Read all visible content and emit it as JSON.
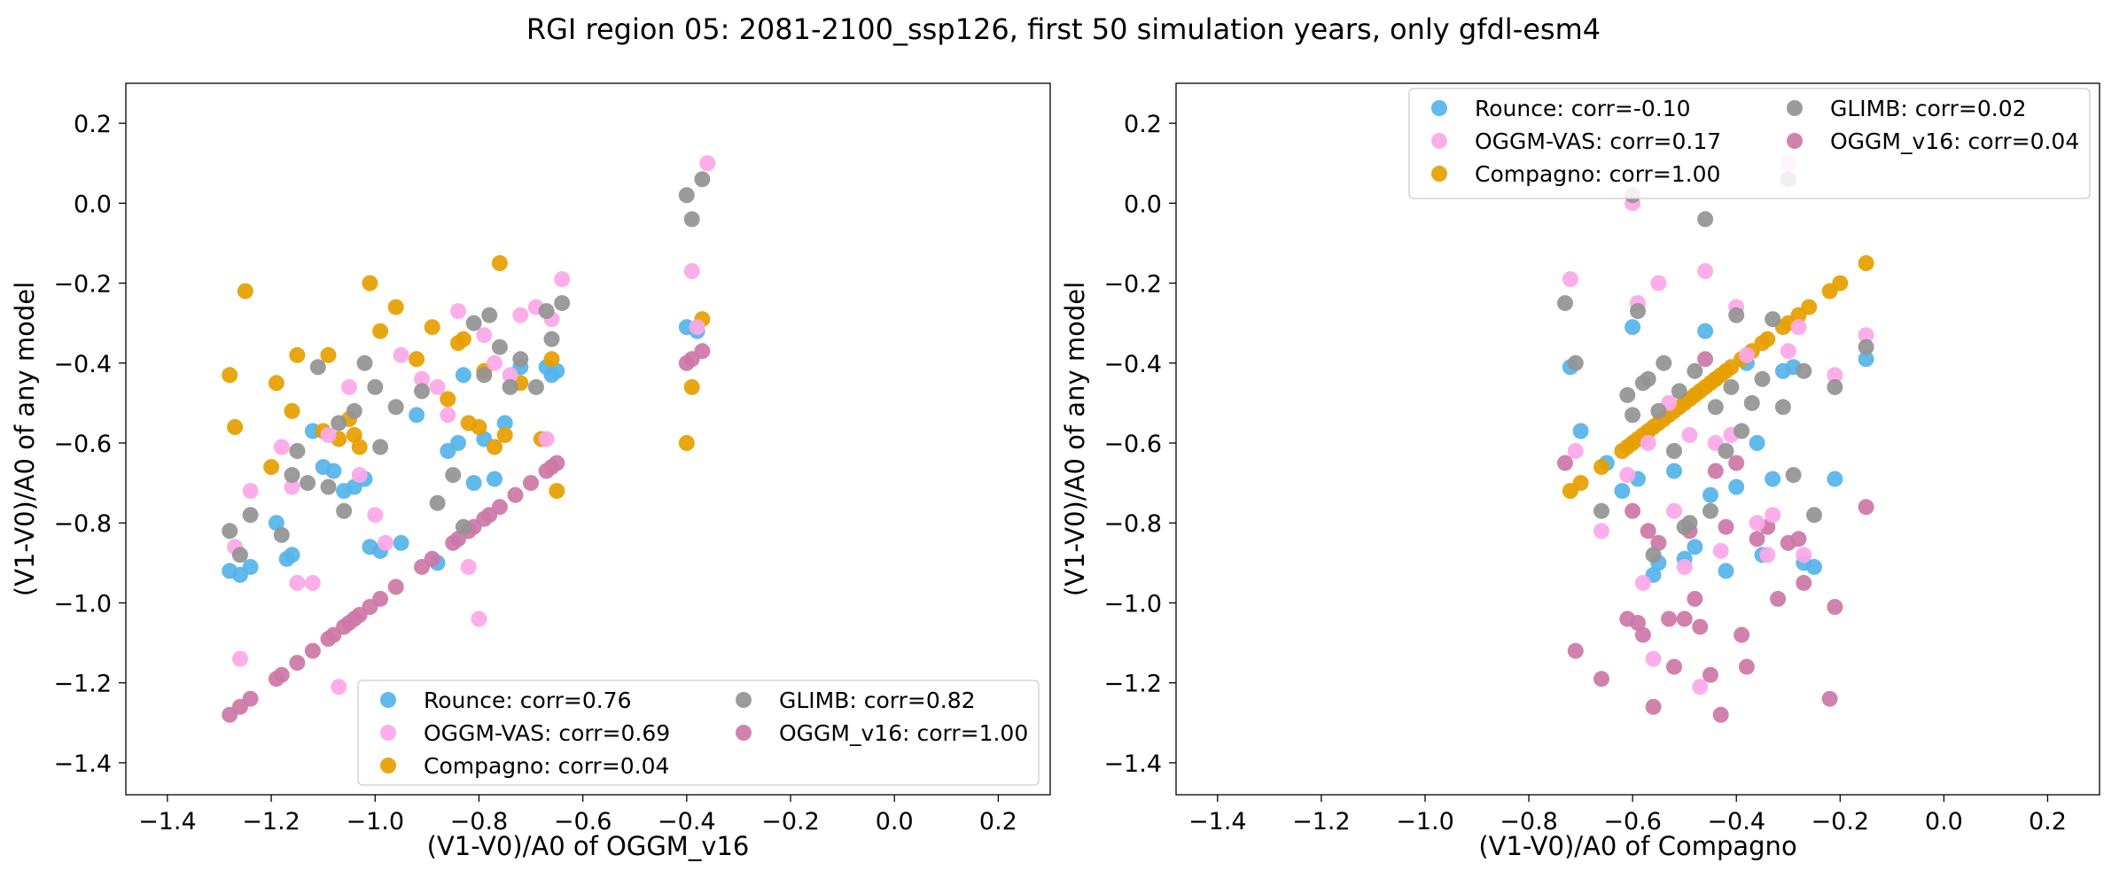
{
  "figure_title": "RGI region 05: 2081-2100_ssp126, first 50 simulation years, only gfdl-esm4",
  "colors": {
    "Rounce": "#56b4e9",
    "Compagno": "#e69f00",
    "OGGM_v16": "#cc79a7",
    "OGGM-VAS": "#fca8e8",
    "GLIMB": "#939393"
  },
  "chart_data": [
    {
      "type": "scatter",
      "title": "",
      "xlabel": "(V1-V0)/A0 of OGGM_v16",
      "ylabel": "(V1-V0)/A0 of any model",
      "xlim": [
        -1.48,
        0.3
      ],
      "ylim": [
        -1.48,
        0.3
      ],
      "xticks": [
        "−1.4",
        "−1.2",
        "−1.0",
        "−0.8",
        "−0.6",
        "−0.4",
        "−0.2",
        "0.0",
        "0.2"
      ],
      "yticks": [
        "0.2",
        "0.0",
        "−0.2",
        "−0.4",
        "−0.6",
        "−0.8",
        "−1.0",
        "−1.2",
        "−1.4"
      ],
      "grid": false,
      "legend_position": "lower-right",
      "legend_columns": 2,
      "series": [
        {
          "name": "Rounce: corr=0.76",
          "model": "Rounce",
          "x": [
            -1.28,
            -1.26,
            -1.24,
            -1.19,
            -1.17,
            -1.16,
            -1.12,
            -1.1,
            -1.08,
            -1.06,
            -1.04,
            -1.02,
            -1.01,
            -0.99,
            -0.95,
            -0.92,
            -0.88,
            -0.86,
            -0.84,
            -0.83,
            -0.81,
            -0.79,
            -0.77,
            -0.75,
            -0.72,
            -0.67,
            -0.66,
            -0.65,
            -0.4,
            -0.38
          ],
          "y": [
            -0.92,
            -0.93,
            -0.91,
            -0.8,
            -0.89,
            -0.88,
            -0.57,
            -0.66,
            -0.67,
            -0.72,
            -0.71,
            -0.69,
            -0.86,
            -0.87,
            -0.85,
            -0.53,
            -0.9,
            -0.62,
            -0.6,
            -0.43,
            -0.7,
            -0.59,
            -0.69,
            -0.55,
            -0.41,
            -0.41,
            -0.43,
            -0.42,
            -0.31,
            -0.32
          ]
        },
        {
          "name": "Compagno: corr=0.04",
          "model": "Compagno",
          "x": [
            -1.28,
            -1.27,
            -1.25,
            -1.2,
            -1.19,
            -1.16,
            -1.15,
            -1.1,
            -1.09,
            -1.07,
            -1.05,
            -1.04,
            -1.03,
            -1.01,
            -0.99,
            -0.96,
            -0.92,
            -0.89,
            -0.86,
            -0.84,
            -0.83,
            -0.82,
            -0.8,
            -0.79,
            -0.77,
            -0.76,
            -0.75,
            -0.72,
            -0.68,
            -0.66,
            -0.65,
            -0.4,
            -0.39,
            -0.37
          ],
          "y": [
            -0.43,
            -0.56,
            -0.22,
            -0.66,
            -0.45,
            -0.52,
            -0.38,
            -0.57,
            -0.38,
            -0.59,
            -0.54,
            -0.58,
            -0.61,
            -0.2,
            -0.32,
            -0.26,
            -0.39,
            -0.31,
            -0.49,
            -0.35,
            -0.34,
            -0.55,
            -0.56,
            -0.42,
            -0.61,
            -0.15,
            -0.58,
            -0.45,
            -0.59,
            -0.39,
            -0.72,
            -0.6,
            -0.46,
            -0.29
          ]
        },
        {
          "name": "OGGM_v16: corr=1.00",
          "model": "OGGM_v16",
          "x": [
            -1.28,
            -1.26,
            -1.24,
            -1.19,
            -1.18,
            -1.15,
            -1.12,
            -1.09,
            -1.08,
            -1.06,
            -1.05,
            -1.04,
            -1.03,
            -1.01,
            -0.99,
            -0.96,
            -0.91,
            -0.89,
            -0.85,
            -0.84,
            -0.82,
            -0.81,
            -0.79,
            -0.78,
            -0.76,
            -0.73,
            -0.7,
            -0.67,
            -0.66,
            -0.65,
            -0.4,
            -0.39,
            -0.37
          ],
          "y": [
            -1.28,
            -1.26,
            -1.24,
            -1.19,
            -1.18,
            -1.15,
            -1.12,
            -1.09,
            -1.08,
            -1.06,
            -1.05,
            -1.04,
            -1.03,
            -1.01,
            -0.99,
            -0.96,
            -0.91,
            -0.89,
            -0.85,
            -0.84,
            -0.82,
            -0.81,
            -0.79,
            -0.78,
            -0.76,
            -0.73,
            -0.7,
            -0.67,
            -0.66,
            -0.65,
            -0.4,
            -0.39,
            -0.37
          ]
        },
        {
          "name": "OGGM-VAS: corr=0.69",
          "model": "OGGM-VAS",
          "x": [
            -1.27,
            -1.26,
            -1.24,
            -1.18,
            -1.16,
            -1.15,
            -1.12,
            -1.09,
            -1.07,
            -1.05,
            -1.03,
            -1.0,
            -0.98,
            -0.95,
            -0.91,
            -0.88,
            -0.86,
            -0.84,
            -0.82,
            -0.8,
            -0.79,
            -0.77,
            -0.74,
            -0.72,
            -0.69,
            -0.67,
            -0.66,
            -0.64,
            -0.39,
            -0.38,
            -0.36
          ],
          "y": [
            -0.86,
            -1.14,
            -0.72,
            -0.61,
            -0.71,
            -0.95,
            -0.95,
            -0.58,
            -1.21,
            -0.46,
            -0.68,
            -0.78,
            -0.85,
            -0.38,
            -0.44,
            -0.46,
            -0.53,
            -0.27,
            -0.91,
            -1.04,
            -0.33,
            -0.4,
            -0.43,
            -0.28,
            -0.26,
            -0.59,
            -0.29,
            -0.19,
            -0.17,
            -0.31,
            0.1
          ]
        },
        {
          "name": "GLIMB: corr=0.82",
          "model": "GLIMB",
          "x": [
            -1.28,
            -1.26,
            -1.24,
            -1.18,
            -1.16,
            -1.15,
            -1.13,
            -1.11,
            -1.09,
            -1.07,
            -1.06,
            -1.04,
            -1.02,
            -1.0,
            -0.99,
            -0.96,
            -0.91,
            -0.88,
            -0.85,
            -0.83,
            -0.81,
            -0.79,
            -0.78,
            -0.76,
            -0.74,
            -0.72,
            -0.69,
            -0.67,
            -0.66,
            -0.64,
            -0.4,
            -0.39,
            -0.37
          ],
          "y": [
            -0.82,
            -0.88,
            -0.78,
            -0.83,
            -0.68,
            -0.62,
            -0.7,
            -0.41,
            -0.71,
            -0.55,
            -0.77,
            -0.52,
            -0.4,
            -0.46,
            -0.61,
            -0.51,
            -0.47,
            -0.75,
            -0.68,
            -0.81,
            -0.3,
            -0.43,
            -0.28,
            -0.36,
            -0.46,
            -0.39,
            -0.46,
            -0.27,
            -0.34,
            -0.25,
            0.02,
            -0.04,
            0.06
          ]
        }
      ]
    },
    {
      "type": "scatter",
      "title": "",
      "xlabel": "(V1-V0)/A0 of Compagno",
      "ylabel": "(V1-V0)/A0 of any model",
      "xlim": [
        -1.48,
        0.3
      ],
      "ylim": [
        -1.48,
        0.3
      ],
      "xticks": [
        "−1.4",
        "−1.2",
        "−1.0",
        "−0.8",
        "−0.6",
        "−0.4",
        "−0.2",
        "0.0",
        "0.2"
      ],
      "yticks": [
        "0.2",
        "0.0",
        "−0.2",
        "−0.4",
        "−0.6",
        "−0.8",
        "−1.0",
        "−1.2",
        "−1.4"
      ],
      "grid": false,
      "legend_position": "upper-right",
      "legend_columns": 2,
      "series": [
        {
          "name": "Rounce: corr=-0.10",
          "model": "Rounce",
          "x": [
            -0.72,
            -0.7,
            -0.65,
            -0.62,
            -0.6,
            -0.59,
            -0.58,
            -0.56,
            -0.55,
            -0.52,
            -0.5,
            -0.48,
            -0.46,
            -0.45,
            -0.44,
            -0.42,
            -0.4,
            -0.38,
            -0.36,
            -0.35,
            -0.33,
            -0.31,
            -0.29,
            -0.27,
            -0.25,
            -0.21,
            -0.15
          ],
          "y": [
            -0.41,
            -0.57,
            -0.65,
            -0.72,
            -0.31,
            -0.69,
            -0.59,
            -0.93,
            -0.9,
            -0.67,
            -0.89,
            -0.86,
            -0.32,
            -0.73,
            -0.44,
            -0.92,
            -0.71,
            -0.4,
            -0.6,
            -0.88,
            -0.69,
            -0.42,
            -0.41,
            -0.9,
            -0.91,
            -0.69,
            -0.39
          ]
        },
        {
          "name": "Compagno: corr=1.00",
          "model": "Compagno",
          "x": [
            -0.72,
            -0.7,
            -0.66,
            -0.62,
            -0.61,
            -0.6,
            -0.59,
            -0.58,
            -0.57,
            -0.56,
            -0.55,
            -0.54,
            -0.53,
            -0.52,
            -0.51,
            -0.5,
            -0.49,
            -0.48,
            -0.47,
            -0.46,
            -0.45,
            -0.44,
            -0.43,
            -0.42,
            -0.41,
            -0.39,
            -0.37,
            -0.35,
            -0.34,
            -0.31,
            -0.3,
            -0.28,
            -0.26,
            -0.22,
            -0.2,
            -0.15
          ],
          "y": [
            -0.72,
            -0.7,
            -0.66,
            -0.62,
            -0.61,
            -0.6,
            -0.59,
            -0.58,
            -0.57,
            -0.56,
            -0.55,
            -0.54,
            -0.53,
            -0.52,
            -0.51,
            -0.5,
            -0.49,
            -0.48,
            -0.47,
            -0.46,
            -0.45,
            -0.44,
            -0.43,
            -0.42,
            -0.41,
            -0.39,
            -0.37,
            -0.35,
            -0.34,
            -0.31,
            -0.3,
            -0.28,
            -0.26,
            -0.22,
            -0.2,
            -0.15
          ]
        },
        {
          "name": "OGGM_v16: corr=0.04",
          "model": "OGGM_v16",
          "x": [
            -0.73,
            -0.71,
            -0.66,
            -0.61,
            -0.6,
            -0.59,
            -0.58,
            -0.57,
            -0.56,
            -0.55,
            -0.53,
            -0.52,
            -0.5,
            -0.49,
            -0.48,
            -0.47,
            -0.46,
            -0.45,
            -0.44,
            -0.43,
            -0.42,
            -0.4,
            -0.39,
            -0.38,
            -0.36,
            -0.34,
            -0.32,
            -0.3,
            -0.28,
            -0.27,
            -0.22,
            -0.21,
            -0.15
          ],
          "y": [
            -0.65,
            -1.12,
            -1.19,
            -1.04,
            -0.77,
            -1.05,
            -1.08,
            -0.82,
            -1.26,
            -0.85,
            -1.04,
            -1.16,
            -1.04,
            -0.82,
            -0.99,
            -1.06,
            -0.39,
            -1.18,
            -0.67,
            -1.28,
            -0.81,
            -0.65,
            -1.08,
            -1.16,
            -0.84,
            -0.81,
            -0.99,
            -0.85,
            -0.84,
            -0.95,
            -1.24,
            -1.01,
            -0.76
          ]
        },
        {
          "name": "OGGM-VAS: corr=0.17",
          "model": "OGGM-VAS",
          "x": [
            -0.72,
            -0.71,
            -0.66,
            -0.61,
            -0.6,
            -0.59,
            -0.58,
            -0.57,
            -0.56,
            -0.55,
            -0.53,
            -0.52,
            -0.5,
            -0.49,
            -0.47,
            -0.46,
            -0.44,
            -0.43,
            -0.41,
            -0.4,
            -0.38,
            -0.36,
            -0.34,
            -0.33,
            -0.3,
            -0.28,
            -0.27,
            -0.21,
            -0.15,
            -0.3
          ],
          "y": [
            -0.19,
            -0.62,
            -0.82,
            -0.68,
            0.0,
            -0.25,
            -0.95,
            -0.6,
            -1.14,
            -0.2,
            -0.5,
            -0.77,
            -0.91,
            -0.58,
            -1.21,
            -0.17,
            -0.6,
            -0.87,
            -0.58,
            -0.26,
            -0.38,
            -0.8,
            -0.88,
            -0.78,
            -0.37,
            -0.31,
            -0.88,
            -0.43,
            -0.33,
            0.1
          ]
        },
        {
          "name": "GLIMB: corr=0.02",
          "model": "GLIMB",
          "x": [
            -0.73,
            -0.71,
            -0.66,
            -0.61,
            -0.6,
            -0.59,
            -0.58,
            -0.57,
            -0.56,
            -0.55,
            -0.54,
            -0.52,
            -0.51,
            -0.5,
            -0.49,
            -0.48,
            -0.46,
            -0.45,
            -0.44,
            -0.42,
            -0.41,
            -0.4,
            -0.39,
            -0.37,
            -0.35,
            -0.33,
            -0.31,
            -0.29,
            -0.27,
            -0.25,
            -0.21,
            -0.15,
            -0.3,
            -0.6
          ],
          "y": [
            -0.25,
            -0.4,
            -0.77,
            -0.48,
            -0.53,
            -0.27,
            -0.45,
            -0.44,
            -0.88,
            -0.52,
            -0.4,
            -0.62,
            -0.47,
            -0.81,
            -0.8,
            -0.42,
            -0.04,
            -0.77,
            -0.51,
            -0.62,
            -0.46,
            -0.28,
            -0.57,
            -0.5,
            -0.44,
            -0.29,
            -0.51,
            -0.68,
            -0.42,
            -0.78,
            -0.46,
            -0.36,
            0.06,
            0.02
          ]
        }
      ]
    }
  ]
}
